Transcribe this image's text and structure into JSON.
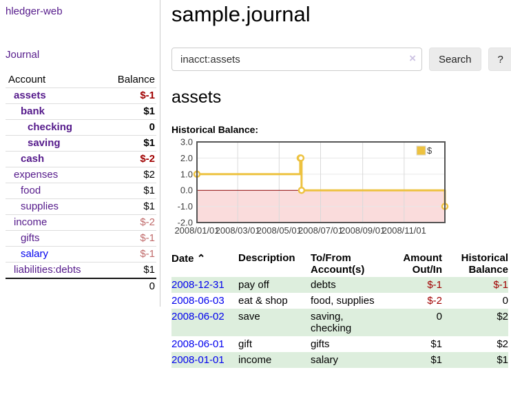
{
  "colors": {
    "link_purple": "#551A8B",
    "link_blue": "#0000EE",
    "negative_strong": "#a00000",
    "negative_muted": "#c06a6a",
    "row_stripe_green": "#ddeedd",
    "chart_line_gold": "#EDC240",
    "chart_negative_fill": "#fadcdc",
    "chart_zero_line": "#8b0000",
    "chart_border": "#545454"
  },
  "sidebar": {
    "app_title": "hledger-web",
    "journal_link": "Journal",
    "table": {
      "account_header": "Account",
      "balance_header": "Balance",
      "rows": [
        {
          "account": "assets",
          "depth": 1,
          "bold": true,
          "link_color": "purple",
          "balance": "$-1",
          "tone": "neg"
        },
        {
          "account": "bank",
          "depth": 2,
          "bold": true,
          "link_color": "purple",
          "balance": "$1",
          "tone": ""
        },
        {
          "account": "checking",
          "depth": 3,
          "bold": true,
          "link_color": "purple",
          "balance": "0",
          "tone": ""
        },
        {
          "account": "saving",
          "depth": 3,
          "bold": true,
          "link_color": "purple",
          "balance": "$1",
          "tone": ""
        },
        {
          "account": "cash",
          "depth": 2,
          "bold": true,
          "link_color": "purple",
          "balance": "$-2",
          "tone": "neg"
        },
        {
          "account": "expenses",
          "depth": 1,
          "bold": false,
          "link_color": "purple",
          "balance": "$2",
          "tone": ""
        },
        {
          "account": "food",
          "depth": 2,
          "bold": false,
          "link_color": "purple",
          "balance": "$1",
          "tone": ""
        },
        {
          "account": "supplies",
          "depth": 2,
          "bold": false,
          "link_color": "purple",
          "balance": "$1",
          "tone": ""
        },
        {
          "account": "income",
          "depth": 1,
          "bold": false,
          "link_color": "purple",
          "balance": "$-2",
          "tone": "muted"
        },
        {
          "account": "gifts",
          "depth": 2,
          "bold": false,
          "link_color": "purple",
          "balance": "$-1",
          "tone": "muted"
        },
        {
          "account": "salary",
          "depth": 2,
          "bold": false,
          "link_color": "blue",
          "balance": "$-1",
          "tone": "muted"
        },
        {
          "account": "liabilities:debts",
          "depth": 1,
          "bold": false,
          "link_color": "purple",
          "balance": "$1",
          "tone": ""
        }
      ],
      "total_balance": "0"
    }
  },
  "main": {
    "title": "sample.journal",
    "search": {
      "value": "inacct:assets",
      "clear_icon": "×",
      "search_label": "Search",
      "help_label": "?"
    },
    "account_heading": "assets",
    "chart_label": "Historical Balance:"
  },
  "chart_data": {
    "type": "line",
    "title": "Historical Balance",
    "step": true,
    "series": [
      {
        "name": "$",
        "x": [
          "2008-01-01",
          "2008-06-01",
          "2008-06-02",
          "2008-06-03",
          "2008-12-31"
        ],
        "values": [
          1,
          2,
          2,
          0,
          -1
        ]
      }
    ],
    "ylim": [
      -2,
      3
    ],
    "yticks": [
      3.0,
      2.0,
      1.0,
      0.0,
      -1.0,
      -2.0
    ],
    "xticks": [
      "2008/01/01",
      "2008/03/01",
      "2008/05/01",
      "2008/07/01",
      "2008/09/01",
      "2008/11/01"
    ],
    "legend_position": "top-right",
    "grid": true,
    "negative_region_shaded": true
  },
  "register": {
    "sort_icon": "⌃",
    "headers": {
      "date": "Date",
      "description": "Description",
      "account": "To/From Account(s)",
      "amount": "Amount Out/In",
      "balance": "Historical Balance"
    },
    "rows": [
      {
        "date": "2008-12-31",
        "description": "pay off",
        "accounts": "debts",
        "amount": "$-1",
        "balance": "$-1"
      },
      {
        "date": "2008-06-03",
        "description": "eat & shop",
        "accounts": "food, supplies",
        "amount": "$-2",
        "balance": "0"
      },
      {
        "date": "2008-06-02",
        "description": "save",
        "accounts": "saving, checking",
        "amount": "0",
        "balance": "$2"
      },
      {
        "date": "2008-06-01",
        "description": "gift",
        "accounts": "gifts",
        "amount": "$1",
        "balance": "$2"
      },
      {
        "date": "2008-01-01",
        "description": "income",
        "accounts": "salary",
        "amount": "$1",
        "balance": "$1"
      }
    ]
  }
}
